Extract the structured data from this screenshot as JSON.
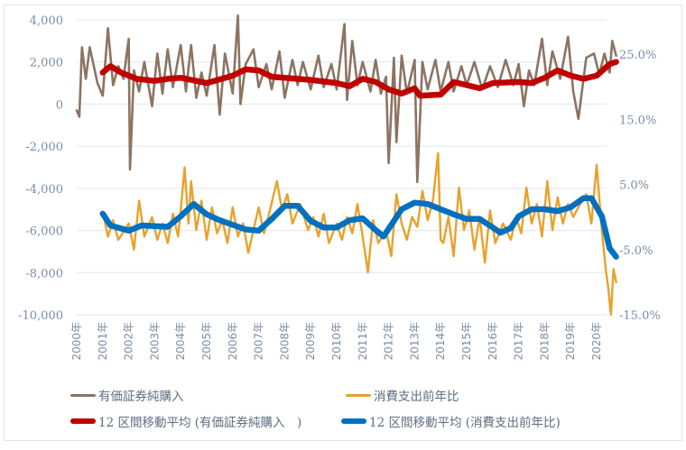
{
  "chart_data": {
    "type": "line",
    "left_axis": {
      "ticks": [
        "4,000",
        "2,000",
        "0",
        "-2,000",
        "-4,000",
        "-6,000",
        "-8,000",
        "-10,000"
      ],
      "range": [
        -10000,
        4000
      ]
    },
    "right_axis": {
      "ticks": [
        "25.0%",
        "15.0%",
        "5.0%",
        "-5.0%",
        "-15.0%"
      ],
      "range": [
        -15,
        25
      ]
    },
    "x_ticks": [
      "2000年",
      "2001年",
      "2002年",
      "2003年",
      "2004年",
      "2005年",
      "2006年",
      "2007年",
      "2008年",
      "2009年",
      "2010年",
      "2011年",
      "2012年",
      "2013年",
      "2014年",
      "2015年",
      "2016年",
      "2017年",
      "2018年",
      "2019年",
      "2020年"
    ],
    "grid": true,
    "legend_placement": "bottom",
    "series": [
      {
        "name": "有価証券純購入",
        "axis": "left",
        "color": "#8c7462",
        "x": [
          2000.0,
          2000.1,
          2000.2,
          2000.35,
          2000.5,
          2000.8,
          2001.0,
          2001.2,
          2001.4,
          2001.6,
          2001.8,
          2002.0,
          2002.05,
          2002.2,
          2002.4,
          2002.6,
          2002.9,
          2003.1,
          2003.3,
          2003.5,
          2003.7,
          2004.0,
          2004.2,
          2004.4,
          2004.6,
          2004.8,
          2005.0,
          2005.3,
          2005.5,
          2005.7,
          2006.0,
          2006.2,
          2006.3,
          2006.5,
          2006.8,
          2007.0,
          2007.3,
          2007.5,
          2007.8,
          2008.0,
          2008.3,
          2008.5,
          2008.7,
          2009.0,
          2009.3,
          2009.5,
          2009.8,
          2010.0,
          2010.3,
          2010.4,
          2010.6,
          2010.8,
          2011.0,
          2011.3,
          2011.5,
          2011.7,
          2011.9,
          2012.0,
          2012.2,
          2012.3,
          2012.5,
          2012.7,
          2013.0,
          2013.1,
          2013.3,
          2013.5,
          2013.8,
          2014.0,
          2014.3,
          2014.5,
          2014.8,
          2015.0,
          2015.3,
          2015.6,
          2015.9,
          2016.2,
          2016.5,
          2016.8,
          2017.0,
          2017.2,
          2017.4,
          2017.6,
          2017.9,
          2018.1,
          2018.3,
          2018.6,
          2018.9,
          2019.1,
          2019.3,
          2019.6,
          2019.9,
          2020.1,
          2020.3,
          2020.5,
          2020.6,
          2020.75
        ],
        "values": [
          -300,
          -600,
          2700,
          1200,
          2700,
          1000,
          400,
          3600,
          900,
          1800,
          1200,
          3100,
          -3100,
          1600,
          600,
          2000,
          -100,
          2400,
          500,
          2600,
          800,
          2800,
          600,
          2800,
          300,
          1500,
          400,
          2800,
          -500,
          2400,
          500,
          4200,
          0,
          1900,
          2600,
          800,
          1900,
          700,
          2500,
          300,
          2100,
          900,
          2000,
          700,
          2300,
          800,
          1900,
          700,
          3800,
          200,
          3000,
          900,
          2000,
          600,
          2100,
          500,
          1300,
          -2800,
          2200,
          -1800,
          2300,
          500,
          2100,
          -3700,
          2000,
          700,
          2100,
          600,
          2000,
          600,
          1800,
          900,
          2000,
          700,
          1800,
          800,
          2100,
          900,
          1900,
          -100,
          1600,
          900,
          3100,
          900,
          2500,
          1200,
          3200,
          600,
          -700,
          2200,
          2400,
          1400,
          2400,
          1500,
          3000,
          2300
        ]
      },
      {
        "name": "消費支出前年比",
        "axis": "right",
        "color": "#e9a12a",
        "x": [
          2001.0,
          2001.2,
          2001.4,
          2001.6,
          2002.0,
          2002.2,
          2002.4,
          2002.6,
          2002.9,
          2003.1,
          2003.3,
          2003.5,
          2003.7,
          2003.9,
          2004.0,
          2004.15,
          2004.3,
          2004.4,
          2004.6,
          2004.8,
          2005.0,
          2005.2,
          2005.4,
          2005.6,
          2005.8,
          2006.0,
          2006.2,
          2006.4,
          2006.6,
          2006.8,
          2007.0,
          2007.2,
          2007.4,
          2007.7,
          2007.9,
          2008.1,
          2008.3,
          2008.6,
          2008.9,
          2009.1,
          2009.3,
          2009.5,
          2009.7,
          2010.0,
          2010.2,
          2010.4,
          2010.6,
          2010.8,
          2011.0,
          2011.2,
          2011.4,
          2011.6,
          2011.9,
          2012.1,
          2012.3,
          2012.5,
          2012.7,
          2012.9,
          2013.1,
          2013.3,
          2013.5,
          2013.7,
          2013.9,
          2014.0,
          2014.1,
          2014.3,
          2014.5,
          2014.7,
          2014.9,
          2015.1,
          2015.3,
          2015.5,
          2015.7,
          2015.9,
          2016.1,
          2016.4,
          2016.7,
          2016.9,
          2017.1,
          2017.3,
          2017.5,
          2017.7,
          2017.9,
          2018.1,
          2018.3,
          2018.5,
          2018.7,
          2018.9,
          2019.1,
          2019.3,
          2019.6,
          2019.8,
          2020.0,
          2020.2,
          2020.35,
          2020.45,
          2020.55,
          2020.65,
          2020.75
        ],
        "values": [
          0.8,
          -3,
          -0.5,
          -3.5,
          -1,
          -5,
          2.5,
          -3,
          0,
          -3.5,
          -1,
          -4,
          0.5,
          -3,
          1,
          7.6,
          -1,
          5.5,
          -2,
          2.5,
          -3.5,
          1.5,
          -2.5,
          -0.5,
          -4,
          1.5,
          -3,
          -1,
          -5.5,
          -2,
          1.5,
          -2.5,
          0.5,
          5.5,
          1,
          3.5,
          -1,
          2,
          -2,
          0,
          -3,
          0.5,
          -4,
          -1,
          -3.5,
          0,
          -2.5,
          2,
          -3,
          -8.5,
          -0.5,
          -4,
          -2,
          -6,
          3.5,
          -1,
          -3.5,
          0,
          -1.5,
          4,
          -0.5,
          2.5,
          9.8,
          -3.5,
          -4,
          0,
          -6,
          4.5,
          -2,
          1,
          -5,
          0,
          -7,
          1,
          -4,
          -1,
          -3.5,
          0,
          -2.5,
          4.5,
          -1,
          2,
          -3,
          5.5,
          -2,
          3,
          -1,
          2,
          0,
          1.5,
          3.5,
          -1,
          8,
          -2,
          -8,
          -11,
          -15,
          -8,
          -10
        ]
      },
      {
        "name": "12 区間移動平均 (有価証券純購入　)",
        "axis": "left",
        "color": "#c00000",
        "x": [
          2001.0,
          2001.3,
          2001.7,
          2002.0,
          2002.3,
          2003.0,
          2003.5,
          2004.0,
          2005.0,
          2006.0,
          2006.5,
          2007.0,
          2007.5,
          2008.0,
          2009.0,
          2010.0,
          2010.5,
          2011.0,
          2011.5,
          2012.0,
          2012.5,
          2013.0,
          2013.2,
          2014.0,
          2014.5,
          2015.0,
          2015.5,
          2016.0,
          2017.0,
          2017.5,
          2018.0,
          2018.5,
          2019.0,
          2019.5,
          2020.0,
          2020.5,
          2020.75
        ],
        "values": [
          1500,
          1800,
          1500,
          1350,
          1200,
          1100,
          1200,
          1250,
          1000,
          1350,
          1650,
          1600,
          1300,
          1250,
          1150,
          1000,
          850,
          1200,
          1050,
          700,
          500,
          750,
          400,
          450,
          1050,
          900,
          750,
          1000,
          1050,
          1000,
          1250,
          1600,
          1350,
          1200,
          1350,
          1900,
          2000
        ]
      },
      {
        "name": "12 区間移動平均 (消費支出前年比)",
        "axis": "right",
        "color": "#0070c0",
        "x": [
          2001.0,
          2001.3,
          2002.0,
          2002.5,
          2003.0,
          2003.5,
          2004.0,
          2004.5,
          2005.0,
          2005.5,
          2006.0,
          2006.5,
          2007.0,
          2007.5,
          2008.0,
          2008.5,
          2009.0,
          2009.5,
          2010.0,
          2010.5,
          2011.0,
          2011.5,
          2011.8,
          2012.2,
          2012.5,
          2013.0,
          2013.5,
          2014.0,
          2014.5,
          2015.0,
          2015.5,
          2016.0,
          2016.3,
          2016.7,
          2017.0,
          2017.5,
          2018.0,
          2018.5,
          2019.0,
          2019.5,
          2019.8,
          2020.2,
          2020.5,
          2020.75
        ],
        "values": [
          0.5,
          -1.3,
          -2.1,
          -1.3,
          -1.4,
          -1.5,
          0.1,
          2.0,
          0.4,
          -0.5,
          -1.2,
          -1.9,
          -2.1,
          -0.3,
          1.7,
          1.7,
          -0.6,
          -1.6,
          -1.6,
          -0.5,
          -0.2,
          -2.0,
          -3.0,
          -0.6,
          1.2,
          2.2,
          2.0,
          1.2,
          0.4,
          -0.3,
          -0.3,
          -1.6,
          -2.4,
          -1.7,
          0.1,
          1.2,
          1.2,
          0.9,
          1.5,
          2.9,
          2.9,
          0.1,
          -4.8,
          -6.1
        ]
      }
    ]
  }
}
